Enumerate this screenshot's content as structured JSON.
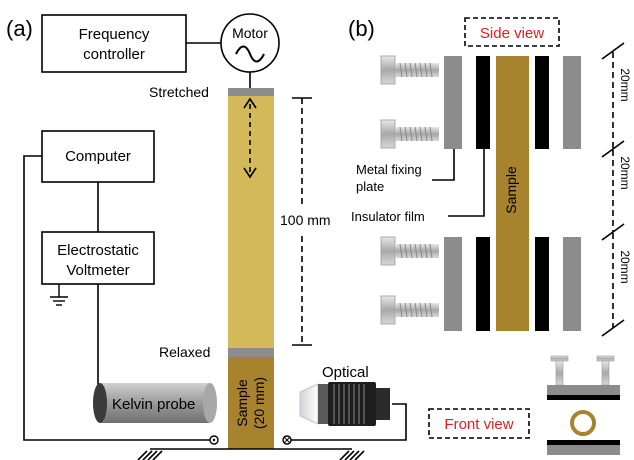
{
  "panel_a": {
    "label": "(a)",
    "frequency_controller": [
      "Frequency",
      "controller"
    ],
    "motor": "Motor",
    "motor_symbol": "~",
    "stretched": "Stretched",
    "relaxed": "Relaxed",
    "length_label": "100 mm",
    "computer": "Computer",
    "voltmeter": [
      "Electrostatic",
      "Voltmeter"
    ],
    "kelvin_probe": "Kelvin probe",
    "sample": [
      "Sample",
      "(20 mm)"
    ],
    "optical": "Optical"
  },
  "panel_b": {
    "label": "(b)",
    "side_view": "Side view",
    "front_view": "Front view",
    "metal_fixing_plate": [
      "Metal fixing",
      "plate"
    ],
    "insulator_film": "Insulator film",
    "sample": "Sample",
    "dim_top": "20mm",
    "dim_mid": "20mm",
    "dim_bot": "20mm"
  },
  "colors": {
    "sample_light": "#d4b95a",
    "sample_dark": "#a8832e",
    "clamp_gray": "#8c8c8c",
    "insulator": "#000000",
    "accent_red": "#e02020"
  }
}
